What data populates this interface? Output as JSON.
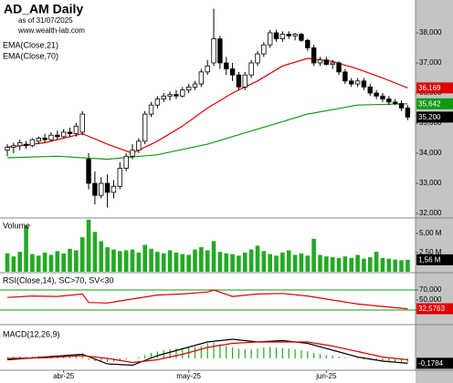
{
  "chart_data": [
    {
      "type": "candlestick",
      "title": "AD_AM Daily",
      "subtitle": "as of 31/07/2025",
      "source": "www.wealth-lab.com",
      "open": [
        34100,
        34200,
        34250,
        34300,
        34250,
        34400,
        34500,
        34450,
        34600,
        34550,
        34700,
        34650,
        34700,
        33800,
        33000,
        32600,
        33000,
        32700,
        32900,
        33500,
        33900,
        34100,
        34400,
        35300,
        35600,
        35800,
        35900,
        35950,
        35900,
        36100,
        36200,
        36300,
        36700,
        37000,
        37800,
        37000,
        36800,
        36600,
        36200,
        36600,
        37000,
        37300,
        37600,
        38000,
        37800,
        37950,
        37900,
        37950,
        37750,
        37500,
        37000,
        37100,
        36950,
        37000,
        36700,
        36400,
        36300,
        36400,
        36200,
        36000,
        35900,
        35800,
        35700,
        35650,
        35500
      ],
      "high": [
        34300,
        34350,
        34450,
        34400,
        34500,
        34550,
        34650,
        34700,
        34750,
        34800,
        34850,
        35000,
        35400,
        34000,
        33400,
        33200,
        33300,
        33100,
        33700,
        34000,
        34300,
        34500,
        35400,
        35700,
        35900,
        36000,
        36050,
        36100,
        36200,
        36300,
        36400,
        36800,
        37100,
        38800,
        37900,
        37200,
        37000,
        36700,
        36700,
        37100,
        37400,
        37700,
        38100,
        38100,
        38050,
        38050,
        38000,
        38000,
        37800,
        37600,
        37200,
        37200,
        37100,
        37050,
        36800,
        36500,
        36500,
        36500,
        36300,
        36100,
        36000,
        35900,
        35800,
        35750,
        35600
      ],
      "low": [
        33900,
        34000,
        34100,
        34150,
        34200,
        34300,
        34350,
        34400,
        34450,
        34500,
        34550,
        34550,
        34600,
        32800,
        32300,
        32500,
        32200,
        32500,
        32800,
        33400,
        33800,
        34000,
        34300,
        35200,
        35500,
        35700,
        35750,
        35800,
        35850,
        36000,
        36100,
        36200,
        36600,
        36900,
        36800,
        36600,
        36400,
        36100,
        36100,
        36500,
        36900,
        37200,
        37500,
        37700,
        37700,
        37800,
        37750,
        37700,
        37400,
        36900,
        36900,
        36900,
        36800,
        36600,
        36300,
        36200,
        36200,
        36100,
        35900,
        35800,
        35700,
        35600,
        35600,
        35400,
        35100
      ],
      "close": [
        34200,
        34250,
        34350,
        34250,
        34450,
        34500,
        34450,
        34600,
        34550,
        34700,
        34650,
        34900,
        35300,
        33000,
        32600,
        33000,
        32700,
        32900,
        33500,
        33900,
        34100,
        34400,
        35300,
        35600,
        35800,
        35900,
        35950,
        35900,
        36100,
        36200,
        36300,
        36700,
        36900,
        37800,
        37000,
        36800,
        36600,
        36200,
        36600,
        37000,
        37300,
        37600,
        38000,
        37800,
        37950,
        37900,
        37950,
        37750,
        37500,
        37000,
        37100,
        36950,
        37000,
        36700,
        36400,
        36300,
        36400,
        36200,
        36000,
        35900,
        35800,
        35700,
        35650,
        35500,
        35200
      ],
      "close_labels": [
        null,
        null,
        null,
        null,
        null,
        null,
        null,
        null,
        null,
        null,
        null,
        null,
        null,
        null,
        null,
        null,
        null,
        null,
        null,
        null,
        null,
        null,
        null,
        null,
        null,
        null,
        null,
        null,
        null,
        null,
        null,
        null,
        null,
        null,
        null,
        null,
        null,
        null,
        null,
        null,
        null,
        null,
        null,
        null,
        null,
        null,
        null,
        null,
        null,
        null,
        null,
        null,
        null,
        null,
        null,
        null,
        null,
        null,
        null,
        null,
        null,
        null,
        null,
        null,
        "35,200"
      ],
      "series": [
        {
          "name": "EMA(Close,21)",
          "color": "#e00000",
          "x": [
            0,
            6,
            12,
            16,
            20,
            24,
            28,
            32,
            36,
            40,
            44,
            48,
            52,
            56,
            60,
            64
          ],
          "values": [
            34200,
            34350,
            34650,
            34300,
            34000,
            34400,
            34900,
            35500,
            36000,
            36400,
            36900,
            37150,
            37050,
            36800,
            36500,
            36169
          ],
          "value_labels": [
            null,
            null,
            null,
            null,
            null,
            null,
            null,
            null,
            null,
            null,
            null,
            null,
            null,
            null,
            null,
            "36,169"
          ]
        },
        {
          "name": "EMA(Close,70)",
          "color": "#119911",
          "x": [
            0,
            8,
            16,
            24,
            32,
            40,
            48,
            56,
            64
          ],
          "values": [
            33850,
            33900,
            33800,
            33950,
            34300,
            34800,
            35300,
            35600,
            35642
          ],
          "value_labels": [
            null,
            null,
            null,
            null,
            null,
            null,
            null,
            null,
            "35,642"
          ]
        }
      ],
      "xlim": [
        -1.17,
        65.26
      ],
      "ylim": [
        31880,
        39090
      ],
      "yticks": [
        {
          "value": 38000,
          "label": "38,000"
        },
        {
          "value": 37000,
          "label": "37,000"
        },
        {
          "value": 36000,
          "label": "36,000"
        },
        {
          "value": 35000,
          "label": "35,000"
        },
        {
          "value": 34000,
          "label": "34,000"
        },
        {
          "value": 33000,
          "label": "33,000"
        },
        {
          "value": 32000,
          "label": "32,000"
        }
      ]
    },
    {
      "type": "bar",
      "title": "Volume",
      "color": "#22aa22",
      "values": [
        2.4,
        2.0,
        2.6,
        6.0,
        2.3,
        2.1,
        2.5,
        2.2,
        2.7,
        2.4,
        3.0,
        2.8,
        4.5,
        6.8,
        5.2,
        4.0,
        3.2,
        2.9,
        2.7,
        2.8,
        2.9,
        2.5,
        3.5,
        3.0,
        2.6,
        2.4,
        2.8,
        2.5,
        2.3,
        2.2,
        2.9,
        3.2,
        2.8,
        4.0,
        2.6,
        2.4,
        2.3,
        2.1,
        2.5,
        2.9,
        3.4,
        2.7,
        2.3,
        2.1,
        2.5,
        2.8,
        2.2,
        2.4,
        2.1,
        4.3,
        2.2,
        2.0,
        1.9,
        1.8,
        2.0,
        1.8,
        2.2,
        1.7,
        1.9,
        2.6,
        1.8,
        1.7,
        1.6,
        1.5,
        1.56
      ],
      "value_labels": [
        null,
        null,
        null,
        null,
        null,
        null,
        null,
        null,
        null,
        null,
        null,
        null,
        null,
        null,
        null,
        null,
        null,
        null,
        null,
        null,
        null,
        null,
        null,
        null,
        null,
        null,
        null,
        null,
        null,
        null,
        null,
        null,
        null,
        null,
        null,
        null,
        null,
        null,
        null,
        null,
        null,
        null,
        null,
        null,
        null,
        null,
        null,
        null,
        null,
        null,
        null,
        null,
        null,
        null,
        null,
        null,
        null,
        null,
        null,
        null,
        null,
        null,
        null,
        null,
        "1,56 M"
      ],
      "xlim": [
        -1.17,
        65.26
      ],
      "ylim": [
        0,
        6.9
      ],
      "yticks": [
        {
          "value": 5,
          "label": "5,00 M"
        },
        {
          "value": 2.5,
          "label": "2,50 M"
        }
      ]
    },
    {
      "type": "line",
      "title": "RSI(Close,14), SC>70, SV<30",
      "color": "#e00000",
      "level_color": "#119911",
      "levels": [
        70,
        30
      ],
      "x": [
        0,
        4,
        8,
        12,
        13,
        16,
        20,
        24,
        28,
        32,
        33,
        36,
        40,
        44,
        48,
        52,
        56,
        60,
        64
      ],
      "values": [
        55,
        58,
        57,
        62,
        45,
        44,
        52,
        60,
        62,
        66,
        70,
        57,
        62,
        63,
        58,
        50,
        42,
        37,
        32.5763
      ],
      "value_labels": [
        null,
        null,
        null,
        null,
        null,
        null,
        null,
        null,
        null,
        null,
        null,
        null,
        null,
        null,
        null,
        null,
        null,
        null,
        "32,5763"
      ],
      "xlim": [
        -1.17,
        65.26
      ],
      "ylim": [
        2.7,
        102.7
      ],
      "yticks": [
        {
          "value": 70,
          "label": "70,000"
        },
        {
          "value": 50,
          "label": "50,000"
        },
        {
          "value": 30,
          "label": "30,000"
        }
      ]
    },
    {
      "type": "macd",
      "title": "MACD(12,26,9)",
      "histogram": {
        "color": "#22aa22",
        "values": [
          0.05,
          0.06,
          0.07,
          0.06,
          0.07,
          0.08,
          0.08,
          0.09,
          0.09,
          0.1,
          0.1,
          0.12,
          0.15,
          -0.05,
          -0.1,
          -0.12,
          -0.13,
          -0.12,
          -0.08,
          -0.04,
          0.0,
          0.05,
          0.12,
          0.2,
          0.25,
          0.3,
          0.33,
          0.36,
          0.38,
          0.4,
          0.42,
          0.45,
          0.55,
          0.58,
          0.52,
          0.45,
          0.4,
          0.35,
          0.32,
          0.33,
          0.36,
          0.4,
          0.42,
          0.4,
          0.38,
          0.36,
          0.33,
          0.3,
          0.26,
          0.2,
          0.16,
          0.12,
          0.1,
          0.06,
          0.03,
          0.0,
          -0.02,
          -0.04,
          -0.06,
          -0.08,
          -0.1,
          -0.11,
          -0.12,
          -0.13,
          -0.14
        ]
      },
      "series": [
        {
          "color": "#000000",
          "x": [
            0,
            6,
            12,
            16,
            20,
            24,
            28,
            32,
            36,
            40,
            44,
            48,
            52,
            56,
            60,
            64
          ],
          "values": [
            -0.05,
            0.05,
            0.15,
            -0.2,
            -0.25,
            0.1,
            0.35,
            0.6,
            0.7,
            0.6,
            0.65,
            0.55,
            0.3,
            0.05,
            -0.1,
            -0.1784
          ],
          "value_labels": [
            null,
            null,
            null,
            null,
            null,
            null,
            null,
            null,
            null,
            null,
            null,
            null,
            null,
            null,
            null,
            "-0,1784"
          ]
        },
        {
          "color": "#e00000",
          "x": [
            0,
            6,
            12,
            16,
            20,
            24,
            28,
            32,
            36,
            40,
            44,
            48,
            52,
            56,
            60,
            64
          ],
          "values": [
            0.0,
            0.02,
            0.1,
            0.0,
            -0.15,
            -0.05,
            0.15,
            0.4,
            0.55,
            0.6,
            0.6,
            0.6,
            0.45,
            0.25,
            0.05,
            -0.05
          ]
        }
      ],
      "xlim": [
        -1.17,
        65.26
      ],
      "ylim": [
        -0.4,
        1.2
      ],
      "xticks": [
        {
          "value": 9,
          "label": "abr-25"
        },
        {
          "value": 29,
          "label": "may-25"
        },
        {
          "value": 51,
          "label": "jun-25"
        }
      ]
    }
  ]
}
